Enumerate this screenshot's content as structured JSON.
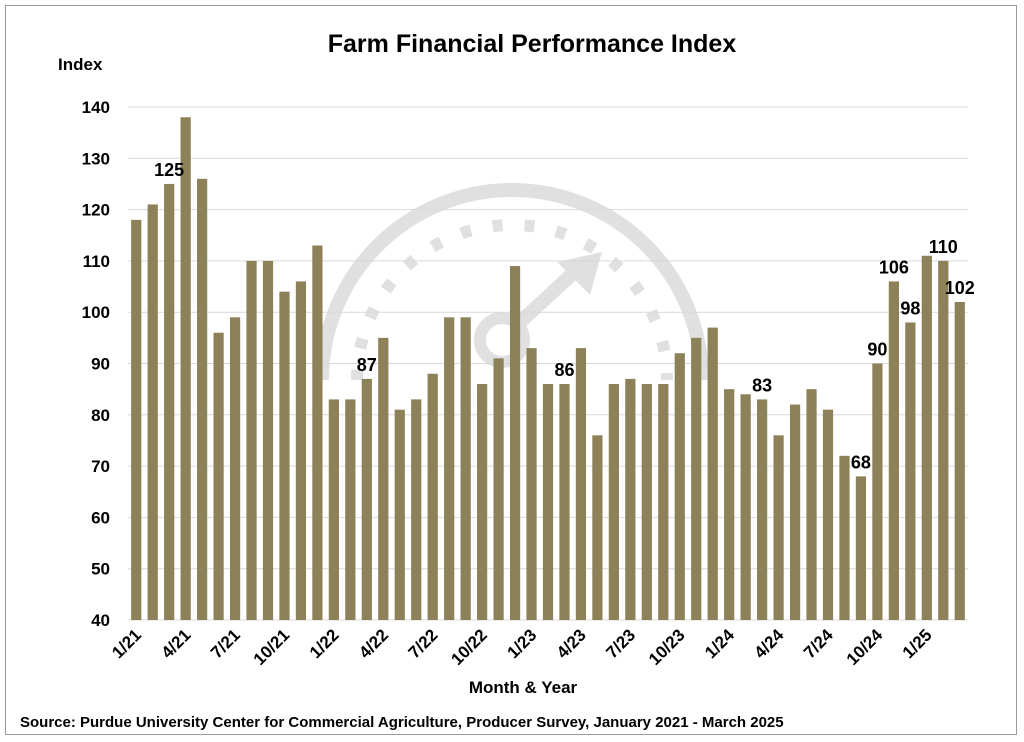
{
  "chart_data": {
    "type": "bar",
    "title": "Farm Financial Performance Index",
    "ylabel": "Index",
    "xlabel": "Month & Year",
    "source": "Source: Purdue University Center for Commercial Agriculture, Producer Survey, January 2021 - March 2025",
    "ylim": [
      40,
      140
    ],
    "ytick_step": 10,
    "grid": true,
    "bar_color": "#8c8158",
    "watermark_color": "#c8c8c8",
    "categories": [
      "1/21",
      "2/21",
      "3/21",
      "4/21",
      "5/21",
      "6/21",
      "7/21",
      "8/21",
      "9/21",
      "10/21",
      "11/21",
      "12/21",
      "1/22",
      "2/22",
      "3/22",
      "4/22",
      "5/22",
      "6/22",
      "7/22",
      "8/22",
      "9/22",
      "10/22",
      "11/22",
      "12/22",
      "1/23",
      "2/23",
      "3/23",
      "4/23",
      "5/23",
      "6/23",
      "7/23",
      "8/23",
      "9/23",
      "10/23",
      "11/23",
      "12/23",
      "1/24",
      "2/24",
      "3/24",
      "4/24",
      "5/24",
      "6/24",
      "7/24",
      "8/24",
      "9/24",
      "10/24",
      "11/24",
      "12/24",
      "1/25",
      "2/25",
      "3/25"
    ],
    "x_tick_labels": [
      "1/21",
      "4/21",
      "7/21",
      "10/21",
      "1/22",
      "4/22",
      "7/22",
      "10/22",
      "1/23",
      "4/23",
      "7/23",
      "10/23",
      "1/24",
      "4/24",
      "7/24",
      "10/24",
      "1/25"
    ],
    "values": [
      118,
      121,
      125,
      138,
      126,
      96,
      99,
      110,
      110,
      104,
      106,
      113,
      83,
      83,
      87,
      95,
      81,
      83,
      88,
      99,
      99,
      86,
      91,
      109,
      93,
      86,
      86,
      93,
      76,
      86,
      87,
      86,
      86,
      92,
      95,
      97,
      85,
      84,
      83,
      76,
      82,
      85,
      81,
      72,
      68,
      90,
      106,
      98,
      111,
      110,
      102
    ],
    "data_labels": [
      {
        "index": 2,
        "text": "125"
      },
      {
        "index": 14,
        "text": "87"
      },
      {
        "index": 26,
        "text": "86"
      },
      {
        "index": 38,
        "text": "83"
      },
      {
        "index": 44,
        "text": "68"
      },
      {
        "index": 45,
        "text": "90"
      },
      {
        "index": 46,
        "text": "106"
      },
      {
        "index": 47,
        "text": "98"
      },
      {
        "index": 49,
        "text": "110"
      },
      {
        "index": 50,
        "text": "102"
      }
    ]
  }
}
